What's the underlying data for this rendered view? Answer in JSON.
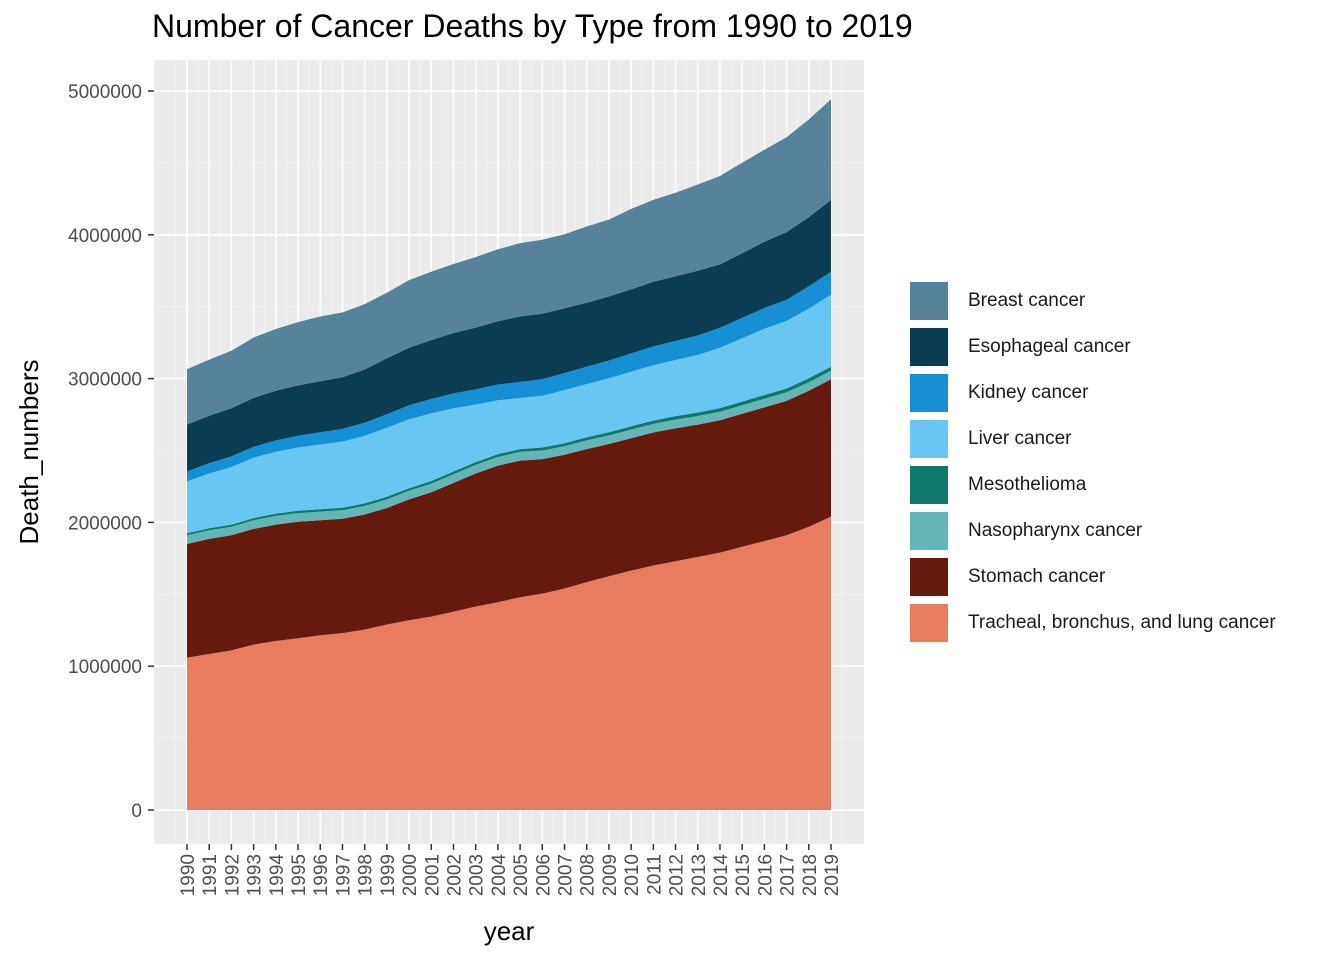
{
  "chart_data": {
    "type": "area",
    "stacked": true,
    "title": "Number of Cancer Deaths by Type from 1990 to 2019",
    "xlabel": "year",
    "ylabel": "Death_numbers",
    "x": [
      1990,
      1991,
      1992,
      1993,
      1994,
      1995,
      1996,
      1997,
      1998,
      1999,
      2000,
      2001,
      2002,
      2003,
      2004,
      2005,
      2006,
      2007,
      2008,
      2009,
      2010,
      2011,
      2012,
      2013,
      2014,
      2015,
      2016,
      2017,
      2018,
      2019
    ],
    "x_tick_labels": [
      "1990",
      "1991",
      "1992",
      "1993",
      "1994",
      "1995",
      "1996",
      "1997",
      "1998",
      "1999",
      "2000",
      "2001",
      "2002",
      "2003",
      "2004",
      "2005",
      "2006",
      "2007",
      "2008",
      "2009",
      "2010",
      "2011",
      "2012",
      "2013",
      "2014",
      "2015",
      "2016",
      "2017",
      "2018",
      "2019"
    ],
    "ylim": [
      0,
      5000000
    ],
    "y_ticks": [
      0,
      1000000,
      2000000,
      3000000,
      4000000,
      5000000
    ],
    "y_tick_labels": [
      "0",
      "1000000",
      "2000000",
      "3000000",
      "4000000",
      "5000000"
    ],
    "grid": true,
    "legend_position": "right",
    "series": [
      {
        "name": "Tracheal, bronchus, and lung cancer",
        "color": "#E87C5E",
        "values": [
          1060000,
          1085000,
          1110000,
          1150000,
          1175000,
          1195000,
          1215000,
          1230000,
          1255000,
          1290000,
          1320000,
          1345000,
          1380000,
          1415000,
          1445000,
          1480000,
          1505000,
          1540000,
          1585000,
          1625000,
          1665000,
          1700000,
          1730000,
          1760000,
          1790000,
          1830000,
          1870000,
          1910000,
          1970000,
          2040000
        ]
      },
      {
        "name": "Stomach cancer",
        "color": "#661A0E",
        "values": [
          790000,
          800000,
          800000,
          805000,
          810000,
          810000,
          800000,
          795000,
          800000,
          810000,
          840000,
          865000,
          895000,
          925000,
          950000,
          950000,
          935000,
          930000,
          925000,
          920000,
          920000,
          925000,
          925000,
          920000,
          920000,
          925000,
          930000,
          935000,
          945000,
          955000
        ]
      },
      {
        "name": "Nasopharynx cancer",
        "color": "#64B5B5",
        "values": [
          60000,
          60000,
          60000,
          60000,
          60000,
          60000,
          60000,
          60000,
          60000,
          60000,
          60000,
          60000,
          60000,
          60000,
          60000,
          60000,
          60000,
          60000,
          60000,
          60000,
          60000,
          60000,
          60000,
          60000,
          60000,
          60000,
          60000,
          60000,
          60000,
          60000
        ]
      },
      {
        "name": "Mesothelioma",
        "color": "#0F786B",
        "values": [
          15000,
          15000,
          15000,
          15000,
          16000,
          16000,
          17000,
          17000,
          17000,
          18000,
          18000,
          18000,
          19000,
          19000,
          20000,
          20000,
          21000,
          21000,
          22000,
          22000,
          23000,
          23000,
          24000,
          24000,
          25000,
          25000,
          26000,
          26000,
          27000,
          28000
        ]
      },
      {
        "name": "Liver cancer",
        "color": "#69C6F3",
        "values": [
          360000,
          380000,
          400000,
          420000,
          430000,
          440000,
          450000,
          460000,
          470000,
          480000,
          480000,
          470000,
          440000,
          400000,
          375000,
          355000,
          360000,
          370000,
          370000,
          375000,
          380000,
          385000,
          390000,
          400000,
          420000,
          440000,
          460000,
          470000,
          485000,
          500000
        ]
      },
      {
        "name": "Kidney cancer",
        "color": "#1690D2",
        "values": [
          70000,
          72000,
          74000,
          76000,
          79000,
          82000,
          85000,
          88000,
          91000,
          94000,
          97000,
          100000,
          103000,
          106000,
          109000,
          112000,
          115000,
          118000,
          121000,
          124000,
          127000,
          130000,
          133000,
          136000,
          139000,
          142000,
          145000,
          148000,
          155000,
          160000
        ]
      },
      {
        "name": "Esophageal cancer",
        "color": "#0A3C52",
        "values": [
          325000,
          330000,
          335000,
          340000,
          345000,
          350000,
          355000,
          360000,
          370000,
          390000,
          400000,
          410000,
          420000,
          430000,
          440000,
          455000,
          455000,
          450000,
          445000,
          445000,
          445000,
          450000,
          450000,
          450000,
          440000,
          450000,
          460000,
          470000,
          480000,
          500000
        ]
      },
      {
        "name": "Breast cancer",
        "color": "#568399",
        "values": [
          385000,
          390000,
          400000,
          420000,
          430000,
          440000,
          450000,
          450000,
          455000,
          455000,
          470000,
          475000,
          480000,
          490000,
          500000,
          510000,
          515000,
          515000,
          530000,
          535000,
          560000,
          570000,
          580000,
          600000,
          615000,
          630000,
          640000,
          660000,
          680000,
          700000
        ]
      }
    ]
  }
}
